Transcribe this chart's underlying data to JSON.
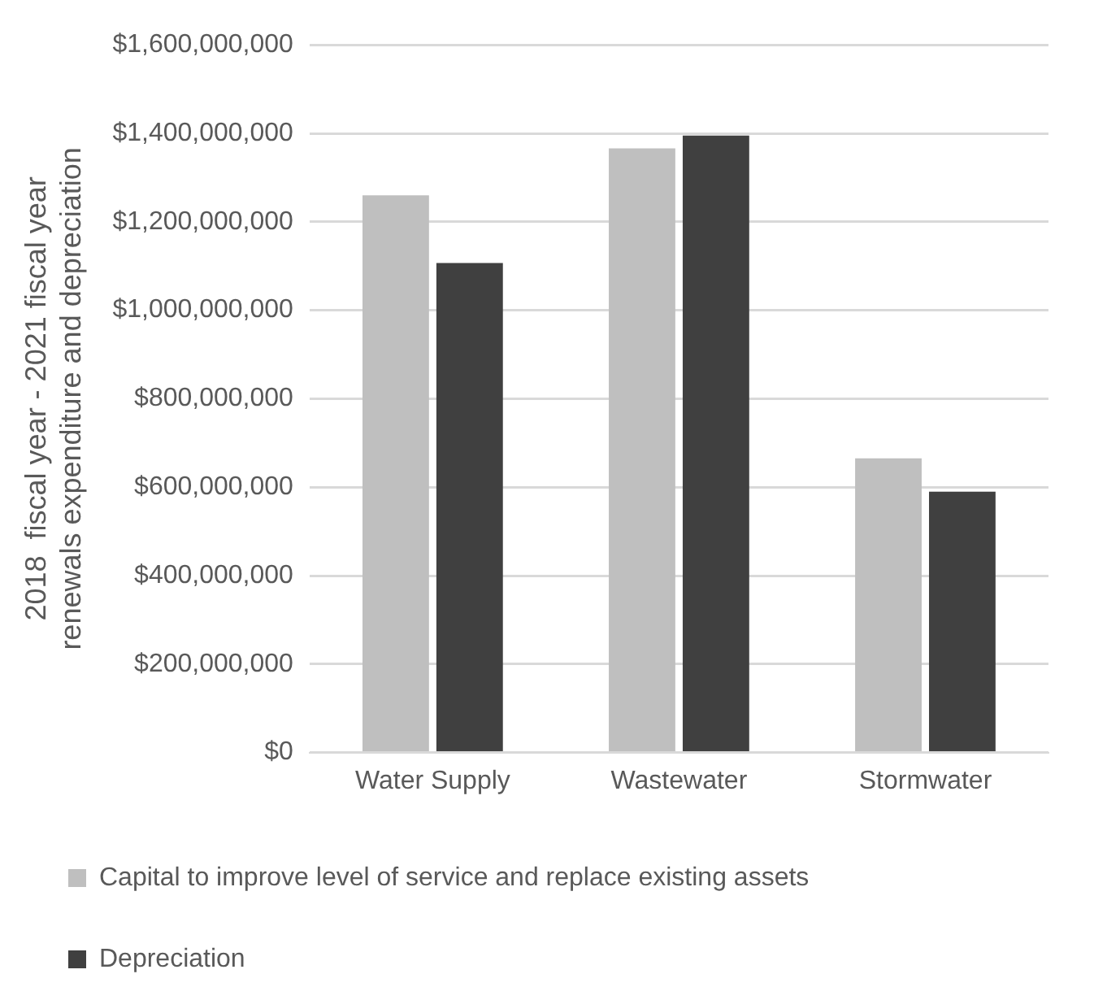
{
  "chart_data": {
    "type": "bar",
    "ylabel": "2018  fiscal year - 2021 fiscal year renewals expenditure and depreciation",
    "categories": [
      "Water Supply",
      "Wastewater",
      "Stormwater"
    ],
    "series": [
      {
        "name": "Capital to improve level of service and replace existing assets",
        "color": "#bfbfbf",
        "values": [
          1260000000,
          1366000000,
          665000000
        ]
      },
      {
        "name": "Depreciation",
        "color": "#404040",
        "values": [
          1107000000,
          1395000000,
          590000000
        ]
      }
    ],
    "ylim": [
      0,
      1600000000
    ],
    "yticks": [
      {
        "value": 0,
        "label": "$0"
      },
      {
        "value": 200000000,
        "label": "$200,000,000"
      },
      {
        "value": 400000000,
        "label": "$400,000,000"
      },
      {
        "value": 600000000,
        "label": "$600,000,000"
      },
      {
        "value": 800000000,
        "label": "$800,000,000"
      },
      {
        "value": 1000000000,
        "label": "$1,000,000,000"
      },
      {
        "value": 1200000000,
        "label": "$1,200,000,000"
      },
      {
        "value": 1400000000,
        "label": "$1,400,000,000"
      },
      {
        "value": 1600000000,
        "label": "$1,600,000,000"
      }
    ],
    "grid": "y",
    "legend": "bottom"
  }
}
